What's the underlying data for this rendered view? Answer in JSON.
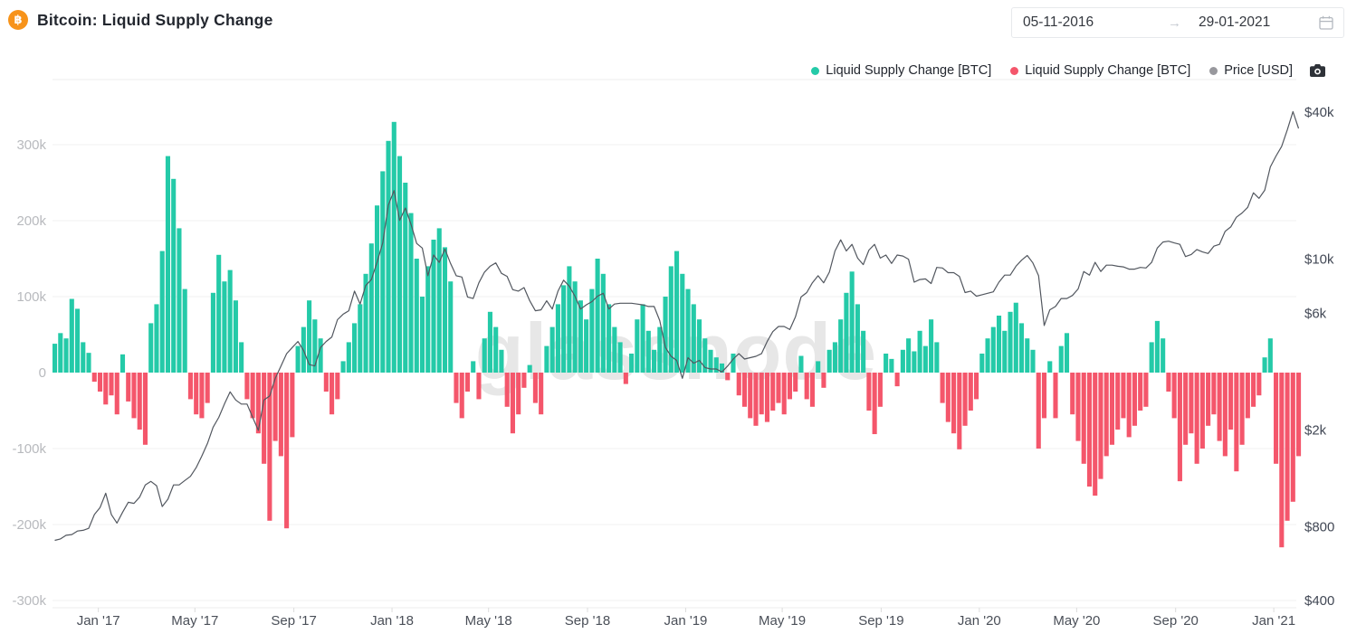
{
  "header": {
    "title": "Bitcoin: Liquid Supply Change",
    "coin_symbol": "฿"
  },
  "date_range": {
    "start": "05-11-2016",
    "end": "29-01-2021",
    "arrow": "→"
  },
  "legend": [
    {
      "label": "Liquid Supply Change [BTC]",
      "color": "#24caa8"
    },
    {
      "label": "Liquid Supply Change [BTC]",
      "color": "#f4566b"
    },
    {
      "label": "Price [USD]",
      "color": "#98989d"
    }
  ],
  "watermark": "glassnode",
  "chart_data": {
    "type": "bar+line",
    "title": "Bitcoin: Liquid Supply Change",
    "x_start_date": "2016-11-05",
    "x_end_date": "2021-01-29",
    "interval": "weekly (estimated from chart pixels)",
    "grid": "horizontal only, light gray",
    "legend_position": "top-right",
    "left_axis": {
      "name": "Liquid Supply Change [BTC]",
      "unit": "thousand BTC",
      "scale": "linear",
      "range_kbtc": [
        -300,
        300
      ],
      "ticks": [
        {
          "label": "300k",
          "value": 300
        },
        {
          "label": "200k",
          "value": 200
        },
        {
          "label": "100k",
          "value": 100
        },
        {
          "label": "0",
          "value": 0
        },
        {
          "label": "-100k",
          "value": -100
        },
        {
          "label": "-200k",
          "value": -200
        },
        {
          "label": "-300k",
          "value": -300
        }
      ]
    },
    "right_axis": {
      "name": "Price [USD]",
      "unit": "USD",
      "scale": "log",
      "ticks": [
        {
          "label": "$40k",
          "value": 40000
        },
        {
          "label": "$10k",
          "value": 10000
        },
        {
          "label": "$6k",
          "value": 6000
        },
        {
          "label": "$2k",
          "value": 2000
        },
        {
          "label": "$800",
          "value": 800
        },
        {
          "label": "$400",
          "value": 400
        }
      ]
    },
    "x_ticks": [
      {
        "label": "Jan '17",
        "date": "2017-01-01"
      },
      {
        "label": "May '17",
        "date": "2017-05-01"
      },
      {
        "label": "Sep '17",
        "date": "2017-09-01"
      },
      {
        "label": "Jan '18",
        "date": "2018-01-01"
      },
      {
        "label": "May '18",
        "date": "2018-05-01"
      },
      {
        "label": "Sep '18",
        "date": "2018-09-01"
      },
      {
        "label": "Jan '19",
        "date": "2019-01-01"
      },
      {
        "label": "May '19",
        "date": "2019-05-01"
      },
      {
        "label": "Sep '19",
        "date": "2019-09-01"
      },
      {
        "label": "Jan '20",
        "date": "2020-01-01"
      },
      {
        "label": "May '20",
        "date": "2020-05-01"
      },
      {
        "label": "Sep '20",
        "date": "2020-09-01"
      },
      {
        "label": "Jan '21",
        "date": "2021-01-01"
      }
    ],
    "series": [
      {
        "name": "Liquid Supply Change [BTC]",
        "type": "bar",
        "axis": "left",
        "unit": "thousand BTC",
        "positive_color": "#24caa8",
        "negative_color": "#f4566b",
        "values_kbtc": [
          38,
          52,
          45,
          97,
          84,
          40,
          26,
          -12,
          -25,
          -42,
          -30,
          -55,
          24,
          -38,
          -60,
          -75,
          -95,
          65,
          90,
          160,
          285,
          255,
          190,
          110,
          -35,
          -55,
          -60,
          -40,
          105,
          155,
          120,
          135,
          95,
          40,
          -35,
          -60,
          -80,
          -120,
          -195,
          -90,
          -110,
          -205,
          -85,
          35,
          60,
          95,
          70,
          45,
          -25,
          -55,
          -35,
          15,
          40,
          65,
          90,
          130,
          170,
          220,
          265,
          305,
          330,
          285,
          250,
          210,
          150,
          100,
          140,
          175,
          190,
          165,
          120,
          -40,
          -60,
          -25,
          15,
          -35,
          45,
          80,
          60,
          30,
          -45,
          -80,
          -55,
          -20,
          10,
          -40,
          -55,
          35,
          60,
          90,
          115,
          140,
          120,
          95,
          70,
          110,
          150,
          130,
          90,
          60,
          40,
          -15,
          25,
          70,
          90,
          55,
          30,
          60,
          100,
          140,
          160,
          130,
          110,
          90,
          70,
          45,
          30,
          20,
          12,
          -10,
          25,
          -30,
          -45,
          -60,
          -70,
          -55,
          -65,
          -50,
          -40,
          -55,
          -35,
          -25,
          22,
          -35,
          -45,
          15,
          -20,
          30,
          40,
          70,
          105,
          133,
          90,
          55,
          -50,
          -81,
          -45,
          25,
          18,
          -18,
          30,
          45,
          28,
          55,
          35,
          70,
          40,
          -40,
          -65,
          -80,
          -101,
          -70,
          -50,
          -35,
          25,
          45,
          60,
          75,
          55,
          80,
          92,
          65,
          45,
          30,
          -100,
          -60,
          15,
          -60,
          35,
          52,
          -55,
          -90,
          -120,
          -150,
          -162,
          -140,
          -110,
          -95,
          -75,
          -60,
          -85,
          -70,
          -50,
          -45,
          40,
          68,
          45,
          -25,
          -60,
          -143,
          -95,
          -80,
          -120,
          -100,
          -70,
          -55,
          -90,
          -110,
          -75,
          -130,
          -95,
          -60,
          -45,
          -30,
          20,
          45,
          -120,
          -230,
          -195,
          -170,
          -110
        ]
      },
      {
        "name": "Price [USD]",
        "type": "line",
        "axis": "right",
        "unit": "USD",
        "color": "#52575f",
        "values_usd": [
          705,
          715,
          740,
          745,
          770,
          775,
          790,
          900,
          960,
          1100,
          900,
          830,
          920,
          1010,
          1000,
          1060,
          1190,
          1230,
          1180,
          970,
          1040,
          1190,
          1190,
          1240,
          1290,
          1400,
          1560,
          1760,
          2050,
          2250,
          2550,
          2860,
          2650,
          2550,
          2550,
          2250,
          1990,
          2650,
          2750,
          3250,
          3650,
          4100,
          4350,
          4600,
          4230,
          3700,
          3650,
          4350,
          4600,
          4800,
          5650,
          5950,
          6150,
          7400,
          6550,
          7800,
          8250,
          9700,
          11650,
          16650,
          19100,
          14400,
          16200,
          13900,
          11600,
          11100,
          8550,
          10400,
          9700,
          11000,
          9600,
          8550,
          8450,
          7000,
          6900,
          8000,
          8850,
          9350,
          9650,
          8750,
          8500,
          7500,
          7400,
          7650,
          6750,
          6150,
          6200,
          6750,
          6250,
          7400,
          8200,
          7750,
          7050,
          6250,
          6500,
          6700,
          7050,
          7250,
          6250,
          6550,
          6600,
          6600,
          6600,
          6550,
          6500,
          6400,
          6400,
          5600,
          4350,
          4000,
          3850,
          3250,
          3950,
          3750,
          3850,
          3600,
          3550,
          3550,
          3450,
          3650,
          3900,
          4100,
          3900,
          3950,
          4000,
          4100,
          4600,
          5050,
          5300,
          5300,
          5150,
          5800,
          7000,
          7300,
          8000,
          8550,
          8000,
          8850,
          10800,
          12000,
          10800,
          11500,
          10100,
          9500,
          10900,
          11500,
          10100,
          10400,
          9600,
          10400,
          10300,
          10000,
          8050,
          8250,
          8300,
          7950,
          9250,
          9200,
          8800,
          8800,
          8500,
          7300,
          7400,
          7050,
          7150,
          7250,
          7350,
          8050,
          8600,
          8600,
          9350,
          9900,
          10350,
          9650,
          8550,
          5350,
          6200,
          6400,
          6900,
          6900,
          7100,
          7550,
          8900,
          8600,
          9700,
          8900,
          9450,
          9450,
          9350,
          9300,
          9100,
          9100,
          9250,
          9200,
          9700,
          11100,
          11750,
          11850,
          11650,
          11500,
          10250,
          10450,
          10950,
          10700,
          10550,
          11300,
          11500,
          13000,
          13550,
          14850,
          15450,
          16300,
          18700,
          17750,
          19150,
          23850,
          26450,
          28950,
          33900,
          40200,
          34300
        ]
      }
    ]
  }
}
